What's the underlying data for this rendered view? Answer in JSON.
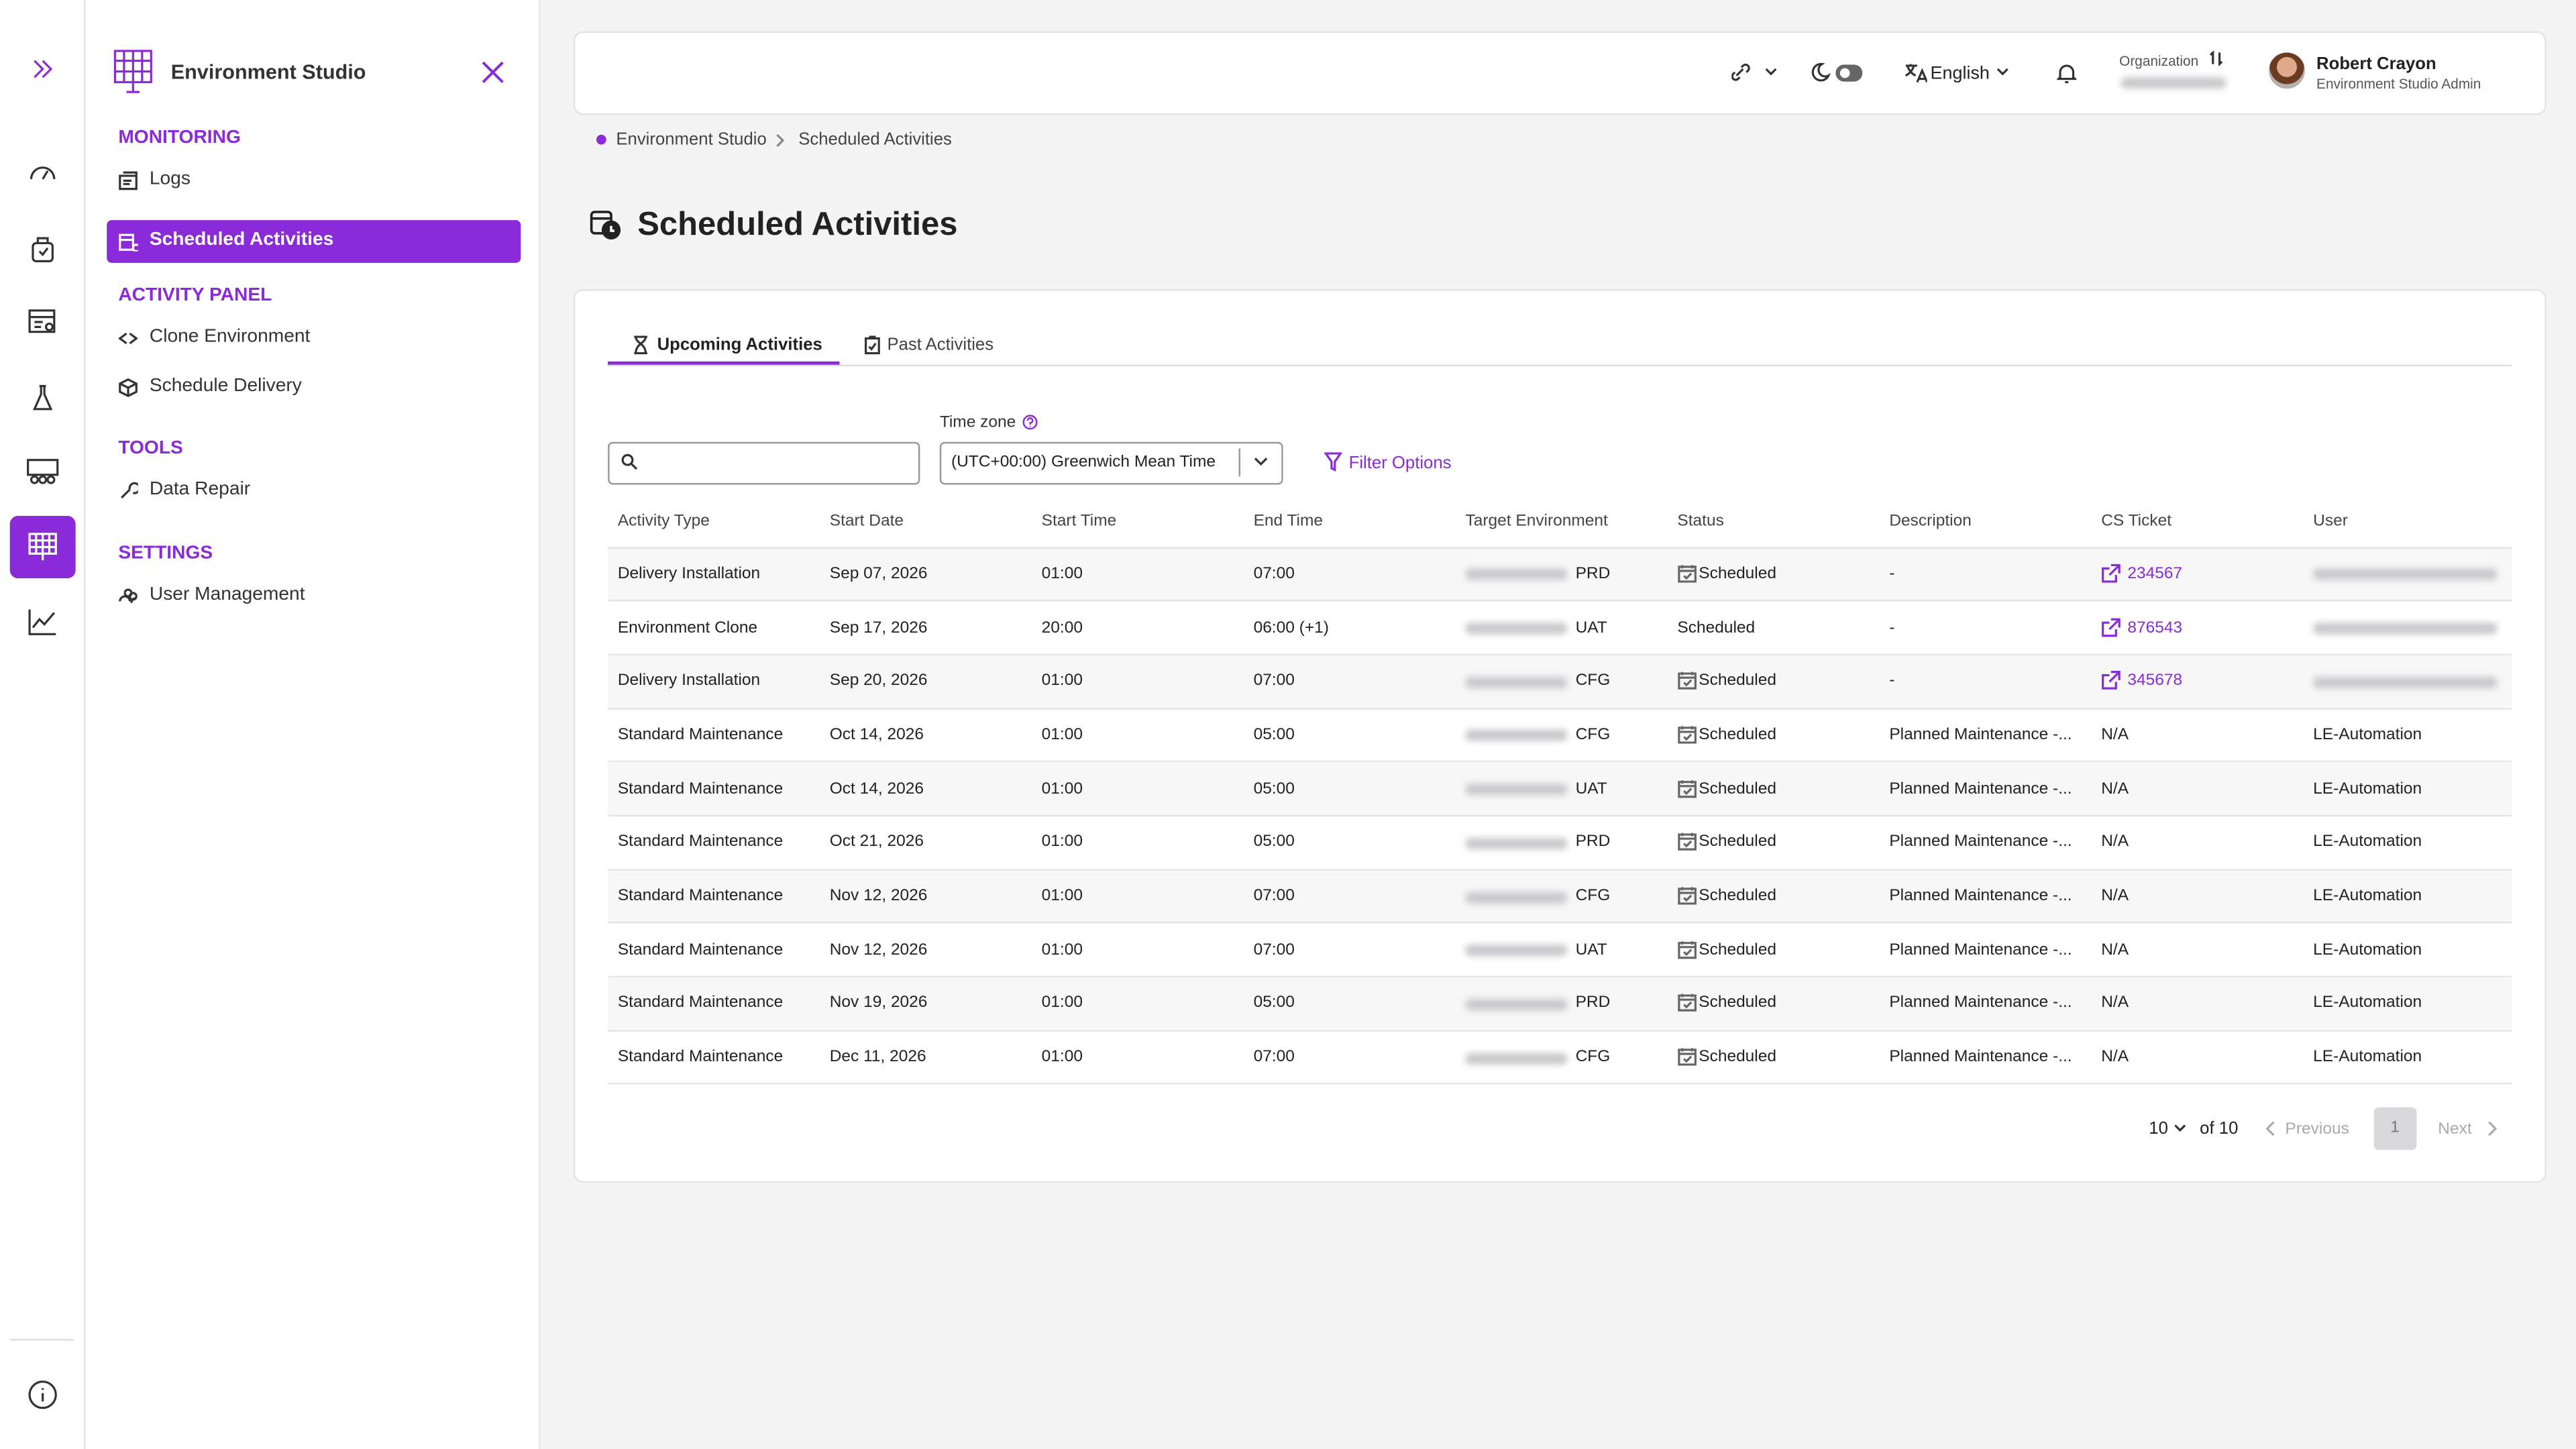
{
  "sidebar": {
    "app_title": "Environment Studio",
    "sections": [
      {
        "heading": "MONITORING",
        "items": [
          "Logs",
          "Scheduled Activities"
        ]
      },
      {
        "heading": "ACTIVITY PANEL",
        "items": [
          "Clone Environment",
          "Schedule Delivery"
        ]
      },
      {
        "heading": "TOOLS",
        "items": [
          "Data Repair"
        ]
      },
      {
        "heading": "SETTINGS",
        "items": [
          "User Management"
        ]
      }
    ]
  },
  "header": {
    "language": "English",
    "organization_label": "Organization",
    "user_name": "Robert Crayon",
    "user_role": "Environment Studio Admin"
  },
  "breadcrumb": [
    "Environment Studio",
    "Scheduled Activities"
  ],
  "page_title": "Scheduled Activities",
  "tabs": [
    "Upcoming Activities",
    "Past Activities"
  ],
  "filters": {
    "timezone_label": "Time zone",
    "timezone_value": "(UTC+00:00) Greenwich Mean Time",
    "filter_button": "Filter Options"
  },
  "table": {
    "columns": [
      "Activity Type",
      "Start Date",
      "Start Time",
      "End Time",
      "Target Environment",
      "Status",
      "Description",
      "CS Ticket",
      "User"
    ],
    "rows": [
      [
        "Delivery Installation",
        "Sep 07, 2026",
        "01:00",
        "07:00",
        "PRD",
        "Scheduled",
        "-",
        "234567",
        null
      ],
      [
        "Environment Clone",
        "Sep 17, 2026",
        "20:00",
        "06:00 (+1)",
        "UAT",
        "Scheduled",
        "-",
        "876543",
        null
      ],
      [
        "Delivery Installation",
        "Sep 20, 2026",
        "01:00",
        "07:00",
        "CFG",
        "Scheduled",
        "-",
        "345678",
        null
      ],
      [
        "Standard Maintenance",
        "Oct 14, 2026",
        "01:00",
        "05:00",
        "CFG",
        "Scheduled",
        "Planned Maintenance -...",
        "N/A",
        "LE-Automation"
      ],
      [
        "Standard Maintenance",
        "Oct 14, 2026",
        "01:00",
        "05:00",
        "UAT",
        "Scheduled",
        "Planned Maintenance -...",
        "N/A",
        "LE-Automation"
      ],
      [
        "Standard Maintenance",
        "Oct 21, 2026",
        "01:00",
        "05:00",
        "PRD",
        "Scheduled",
        "Planned Maintenance -...",
        "N/A",
        "LE-Automation"
      ],
      [
        "Standard Maintenance",
        "Nov 12, 2026",
        "01:00",
        "07:00",
        "CFG",
        "Scheduled",
        "Planned Maintenance -...",
        "N/A",
        "LE-Automation"
      ],
      [
        "Standard Maintenance",
        "Nov 12, 2026",
        "01:00",
        "07:00",
        "UAT",
        "Scheduled",
        "Planned Maintenance -...",
        "N/A",
        "LE-Automation"
      ],
      [
        "Standard Maintenance",
        "Nov 19, 2026",
        "01:00",
        "05:00",
        "PRD",
        "Scheduled",
        "Planned Maintenance -...",
        "N/A",
        "LE-Automation"
      ],
      [
        "Standard Maintenance",
        "Dec 11, 2026",
        "01:00",
        "07:00",
        "CFG",
        "Scheduled",
        "Planned Maintenance -...",
        "N/A",
        "LE-Automation"
      ]
    ]
  },
  "pagination": {
    "page_size": "10",
    "total": "of 10",
    "previous": "Previous",
    "current": "1",
    "next": "Next"
  }
}
